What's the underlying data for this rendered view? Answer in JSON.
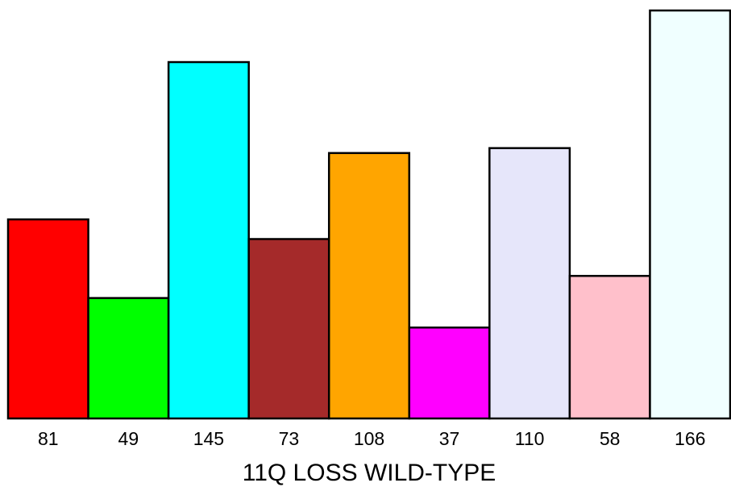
{
  "chart_data": {
    "type": "bar",
    "categories": [
      "81",
      "49",
      "145",
      "73",
      "108",
      "37",
      "110",
      "58",
      "166"
    ],
    "values": [
      81,
      49,
      145,
      73,
      108,
      37,
      110,
      58,
      166
    ],
    "colors": [
      "#ff0000",
      "#00ff00",
      "#00ffff",
      "#a52a2a",
      "#ffa500",
      "#ff00ff",
      "#e6e6fa",
      "#ffc0cb",
      "#f0ffff"
    ],
    "xlabel": "11Q LOSS WILD-TYPE",
    "ylim": [
      0,
      166
    ],
    "grid": false,
    "legend": "none"
  }
}
